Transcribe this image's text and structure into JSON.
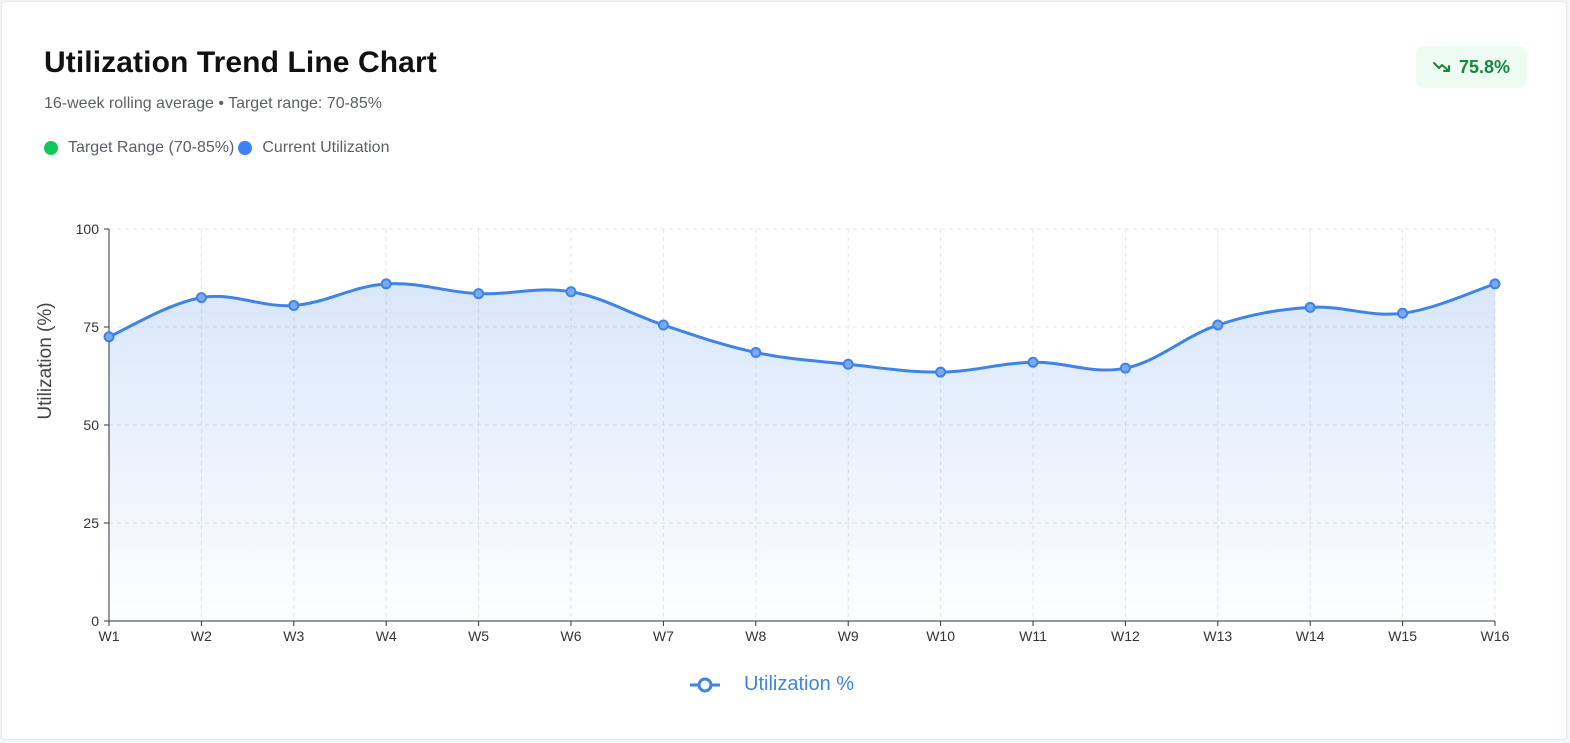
{
  "header": {
    "title": "Utilization Trend Line Chart",
    "subtitle": "16-week rolling average • Target range: 70-85%",
    "badge_value": "75.8%",
    "badge_icon": "trend-down-icon"
  },
  "legend_top": [
    {
      "label": "Target Range (70-85%)",
      "color": "#16c55a"
    },
    {
      "label": "Current Utilization",
      "color": "#3b82f6"
    }
  ],
  "colors": {
    "line": "#3f84e5",
    "badge_text": "#158a3e",
    "badge_bg": "#eefbf2"
  },
  "chart_data": {
    "type": "line",
    "categories": [
      "W1",
      "W2",
      "W3",
      "W4",
      "W5",
      "W6",
      "W7",
      "W8",
      "W9",
      "W10",
      "W11",
      "W12",
      "W13",
      "W14",
      "W15",
      "W16"
    ],
    "series": [
      {
        "name": "Utilization %",
        "values": [
          72.5,
          82.5,
          80.5,
          86,
          83.5,
          84,
          75.5,
          68.5,
          65.5,
          63.5,
          66,
          64.5,
          75.5,
          80,
          78.5,
          86
        ]
      }
    ],
    "ylabel": "Utilization (%)",
    "xlabel": "",
    "ylim": [
      0,
      100
    ],
    "yticks": [
      0,
      25,
      50,
      75,
      100
    ],
    "grid": true,
    "area_fill": true,
    "smooth": true,
    "legend_position": "bottom-center"
  }
}
